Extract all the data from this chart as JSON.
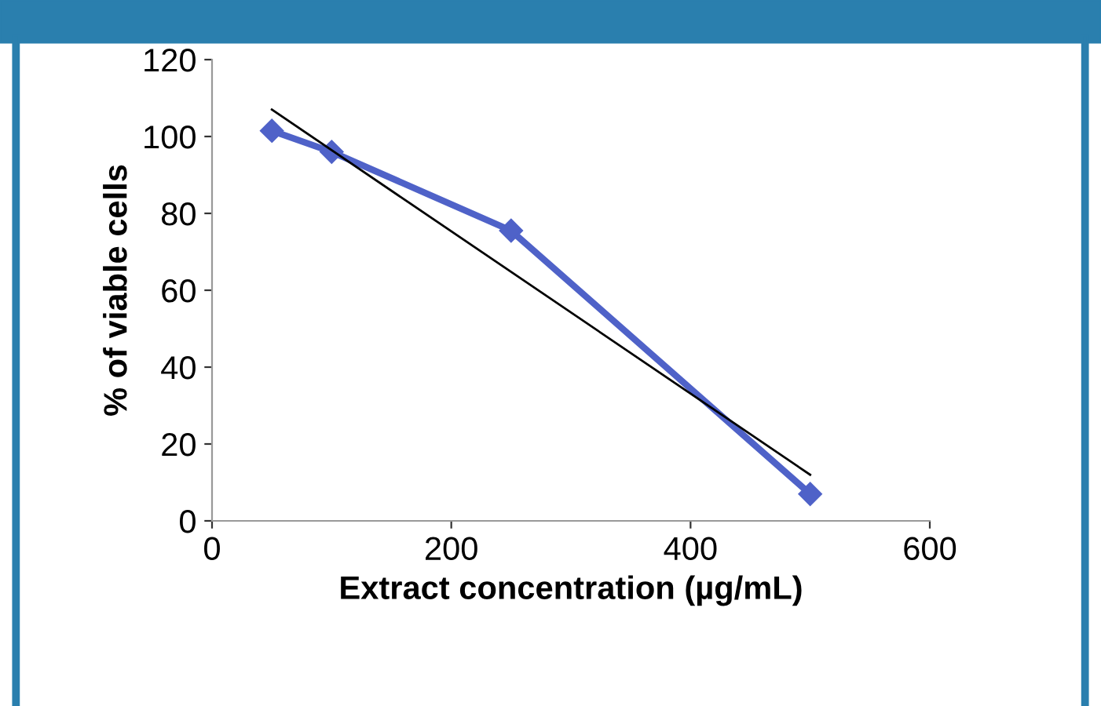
{
  "chart_data": {
    "type": "line",
    "xlabel": "Extract concentration (µg/mL)",
    "ylabel": "% of viable cells",
    "xlim": [
      0,
      600
    ],
    "xticks": [
      0,
      200,
      400,
      600
    ],
    "ylim": [
      0,
      120
    ],
    "yticks": [
      0,
      20,
      40,
      60,
      80,
      100,
      120
    ],
    "grid": false,
    "series": [
      {
        "x": [
          50,
          100,
          250,
          500
        ],
        "values": [
          101.5,
          96,
          75.5,
          7
        ],
        "color": "#4f62c8",
        "marker": "diamond",
        "line_style": "solid"
      },
      {
        "x": [
          50,
          500
        ],
        "values": [
          107,
          12
        ],
        "color": "#000000",
        "marker": "none",
        "line_style": "solid"
      }
    ]
  }
}
